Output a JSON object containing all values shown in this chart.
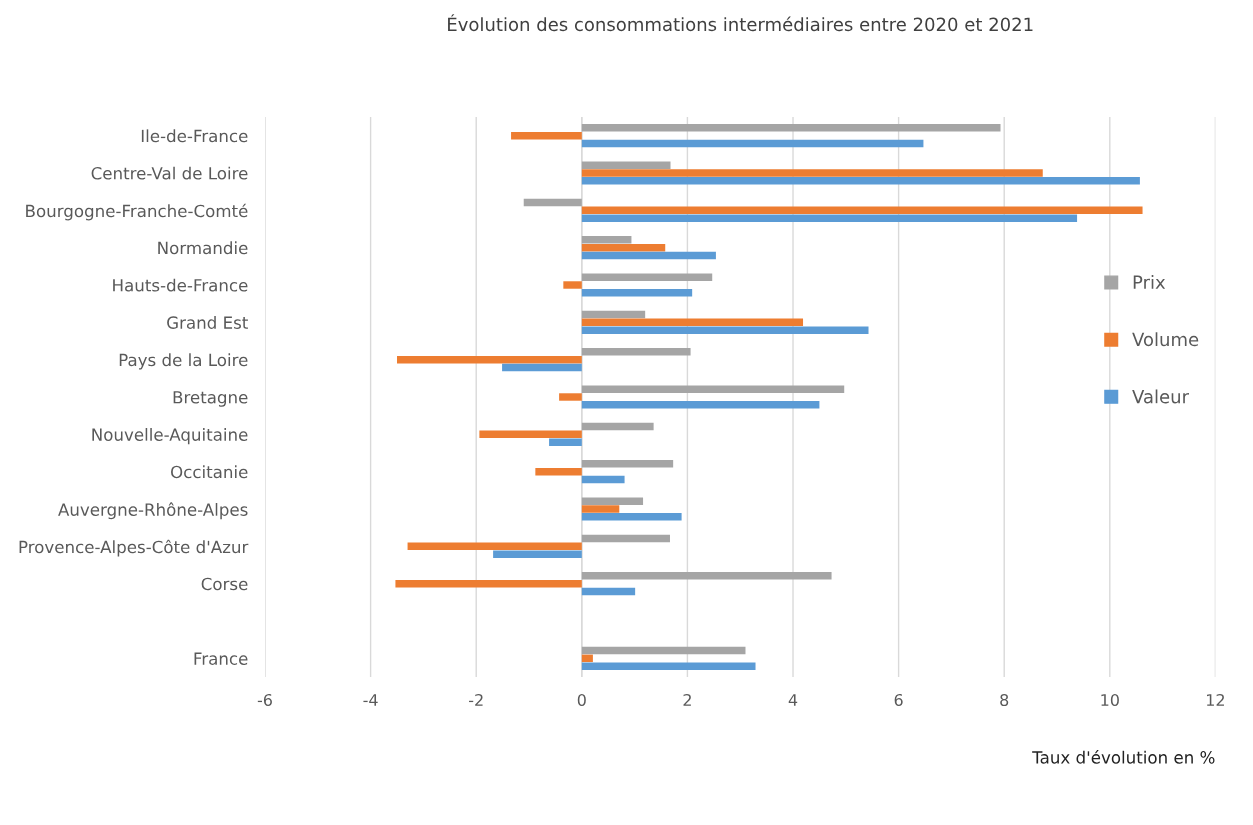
{
  "chart_data": {
    "type": "bar",
    "orientation": "horizontal",
    "title": "Évolution des consommations intermédiaires entre 2020 et 2021",
    "xlabel": "Taux d'évolution en %",
    "categories": [
      "Ile-de-France",
      "Centre-Val de Loire",
      "Bourgogne-Franche-Comté",
      "Normandie",
      "Hauts-de-France",
      "Grand Est",
      "Pays de la Loire",
      "Bretagne",
      "Nouvelle-Aquitaine",
      "Occitanie",
      "Auvergne-Rhône-Alpes",
      "Provence-Alpes-Côte d'Azur",
      "Corse",
      null,
      "France"
    ],
    "series": [
      {
        "name": "Prix",
        "color": "#a5a5a5",
        "values": [
          7.93,
          1.68,
          -1.1,
          0.94,
          2.47,
          1.2,
          2.06,
          4.97,
          1.36,
          1.73,
          1.16,
          1.67,
          4.73,
          null,
          3.1
        ]
      },
      {
        "name": "Volume",
        "color": "#ed7d31",
        "values": [
          -1.34,
          8.73,
          10.62,
          1.58,
          -0.35,
          4.19,
          -3.5,
          -0.43,
          -1.94,
          -0.88,
          0.71,
          -3.3,
          -3.53,
          null,
          0.21
        ]
      },
      {
        "name": "Valeur",
        "color": "#5b9bd5",
        "values": [
          6.47,
          10.57,
          9.38,
          2.54,
          2.09,
          5.43,
          -1.51,
          4.5,
          -0.62,
          0.81,
          1.89,
          -1.68,
          1.01,
          null,
          3.29
        ]
      }
    ],
    "xlim": [
      -6,
      12
    ],
    "xticks": [
      -6,
      -4,
      -2,
      0,
      2,
      4,
      6,
      8,
      10,
      12
    ],
    "grid": "x",
    "legend": "right"
  }
}
